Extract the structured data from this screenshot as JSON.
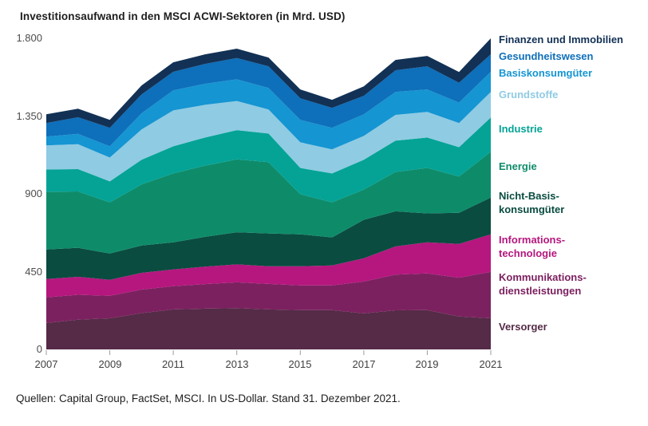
{
  "title": "Investitionsaufwand in den MSCI ACWI-Sektoren (in Mrd. USD)",
  "source": "Quellen: Capital Group, FactSet, MSCI. In US-Dollar. Stand 31. Dezember 2021.",
  "chart_data": {
    "type": "area",
    "stacked": true,
    "title": "Investitionsaufwand in den MSCI ACWI-Sektoren (in Mrd. USD)",
    "xlabel": "",
    "ylabel": "",
    "grid": false,
    "legend_position": "right",
    "ylim": [
      0,
      1800
    ],
    "x": [
      2007,
      2008,
      2009,
      2010,
      2011,
      2012,
      2013,
      2014,
      2015,
      2016,
      2017,
      2018,
      2019,
      2020,
      2021
    ],
    "x_tick_labels": [
      "2007",
      "2009",
      "2011",
      "2013",
      "2015",
      "2017",
      "2019",
      "2021"
    ],
    "x_tick_indices": [
      0,
      2,
      4,
      6,
      8,
      10,
      12,
      14
    ],
    "y_tick_labels": [
      "1.800",
      "1.350",
      "900",
      "450",
      "0"
    ],
    "y_tick_values": [
      1800,
      1350,
      900,
      450,
      0
    ],
    "series": [
      {
        "id": "versorger",
        "name": "Versorger",
        "legend_lines": [
          "Versorger"
        ],
        "color": "#552b47",
        "values": [
          153,
          172,
          180,
          210,
          231,
          236,
          239,
          231,
          227,
          227,
          208,
          226,
          227,
          190,
          180
        ]
      },
      {
        "id": "kommunikationsdienstleistungen",
        "name": "Kommunikationsdienstleistungen",
        "legend_lines": [
          "Kommunikations-",
          "dienstleistungen"
        ],
        "color": "#7c2160",
        "values": [
          148,
          144,
          130,
          136,
          135,
          142,
          149,
          148,
          143,
          143,
          185,
          207,
          213,
          225,
          269
        ]
      },
      {
        "id": "informationstechnologie",
        "name": "Informationstechnologie",
        "legend_lines": [
          "Informations-",
          "technologie"
        ],
        "color": "#b5177e",
        "values": [
          106,
          104,
          93,
          97,
          97,
          101,
          104,
          102,
          111,
          116,
          134,
          163,
          180,
          195,
          217
        ]
      },
      {
        "id": "nicht-basiskonsumgueter",
        "name": "Nicht-Basiskonsumgüter",
        "legend_lines": [
          "Nicht-Basis-",
          "konsumgüter"
        ],
        "color": "#0a4c40",
        "values": [
          171,
          168,
          152,
          158,
          157,
          172,
          186,
          190,
          185,
          162,
          223,
          203,
          167,
          180,
          213
        ]
      },
      {
        "id": "energie",
        "name": "Energie",
        "legend_lines": [
          "Energie"
        ],
        "color": "#0e8c6a",
        "values": [
          334,
          326,
          296,
          354,
          398,
          412,
          422,
          412,
          232,
          203,
          175,
          228,
          263,
          210,
          264
        ]
      },
      {
        "id": "industrie",
        "name": "Industrie",
        "legend_lines": [
          "Industrie"
        ],
        "color": "#04a396",
        "values": [
          129,
          129,
          121,
          142,
          157,
          163,
          169,
          166,
          152,
          167,
          172,
          181,
          176,
          170,
          199
        ]
      },
      {
        "id": "grundstoffe",
        "name": "Grundstoffe",
        "legend_lines": [
          "Grundstoffe"
        ],
        "color": "#8fcbe3",
        "values": [
          139,
          144,
          138,
          176,
          208,
          189,
          168,
          139,
          148,
          139,
          138,
          149,
          148,
          140,
          148
        ]
      },
      {
        "id": "basiskonsumgueter",
        "name": "Basiskonsumgüter",
        "legend_lines": [
          "Basiskonsumgüter"
        ],
        "color": "#1595d2",
        "values": [
          51,
          60,
          65,
          93,
          116,
          122,
          126,
          125,
          130,
          125,
          125,
          133,
          130,
          118,
          116
        ]
      },
      {
        "id": "gesundheitswesen",
        "name": "Gesundheitswesen",
        "legend_lines": [
          "Gesundheitswesen"
        ],
        "color": "#0e6fba",
        "values": [
          79,
          96,
          107,
          109,
          107,
          115,
          123,
          125,
          125,
          115,
          107,
          125,
          134,
          115,
          101
        ]
      },
      {
        "id": "finanzen-und-immobilien",
        "name": "Finanzen und Immobilien",
        "legend_lines": [
          "Finanzen und Immobilien"
        ],
        "color": "#123155",
        "values": [
          50,
          50,
          46,
          52,
          55,
          55,
          54,
          51,
          51,
          47,
          55,
          60,
          60,
          62,
          93
        ]
      }
    ]
  }
}
